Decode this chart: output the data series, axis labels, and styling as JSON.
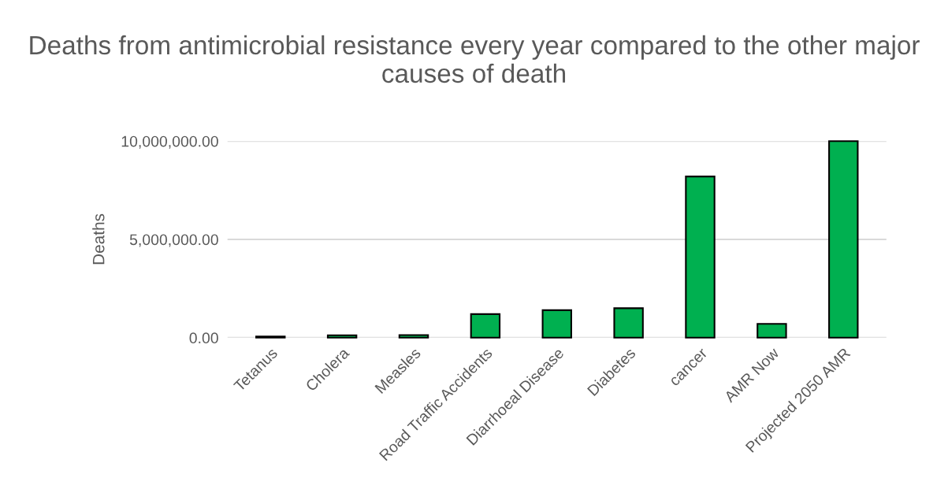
{
  "chart_data": {
    "type": "bar",
    "title": "Deaths from antimicrobial resistance every year compared to the other major causes of death",
    "ylabel": "Deaths",
    "categories": [
      "Tetanus",
      "Cholera",
      "Measles",
      "Road Traffic Accidents",
      "Diarrhoeal Disease",
      "Diabetes",
      "cancer",
      "AMR Now",
      "Projected 2050 AMR"
    ],
    "values": [
      60000,
      120000,
      130000,
      1200000,
      1400000,
      1500000,
      8200000,
      700000,
      10000000
    ],
    "color": "#00b050",
    "ylim": [
      0,
      10000000
    ],
    "yticks": [
      {
        "value": 0,
        "label": "0.00"
      },
      {
        "value": 5000000,
        "label": "5,000,000.00"
      },
      {
        "value": 10000000,
        "label": "10,000,000.00"
      }
    ],
    "grid": "y"
  }
}
